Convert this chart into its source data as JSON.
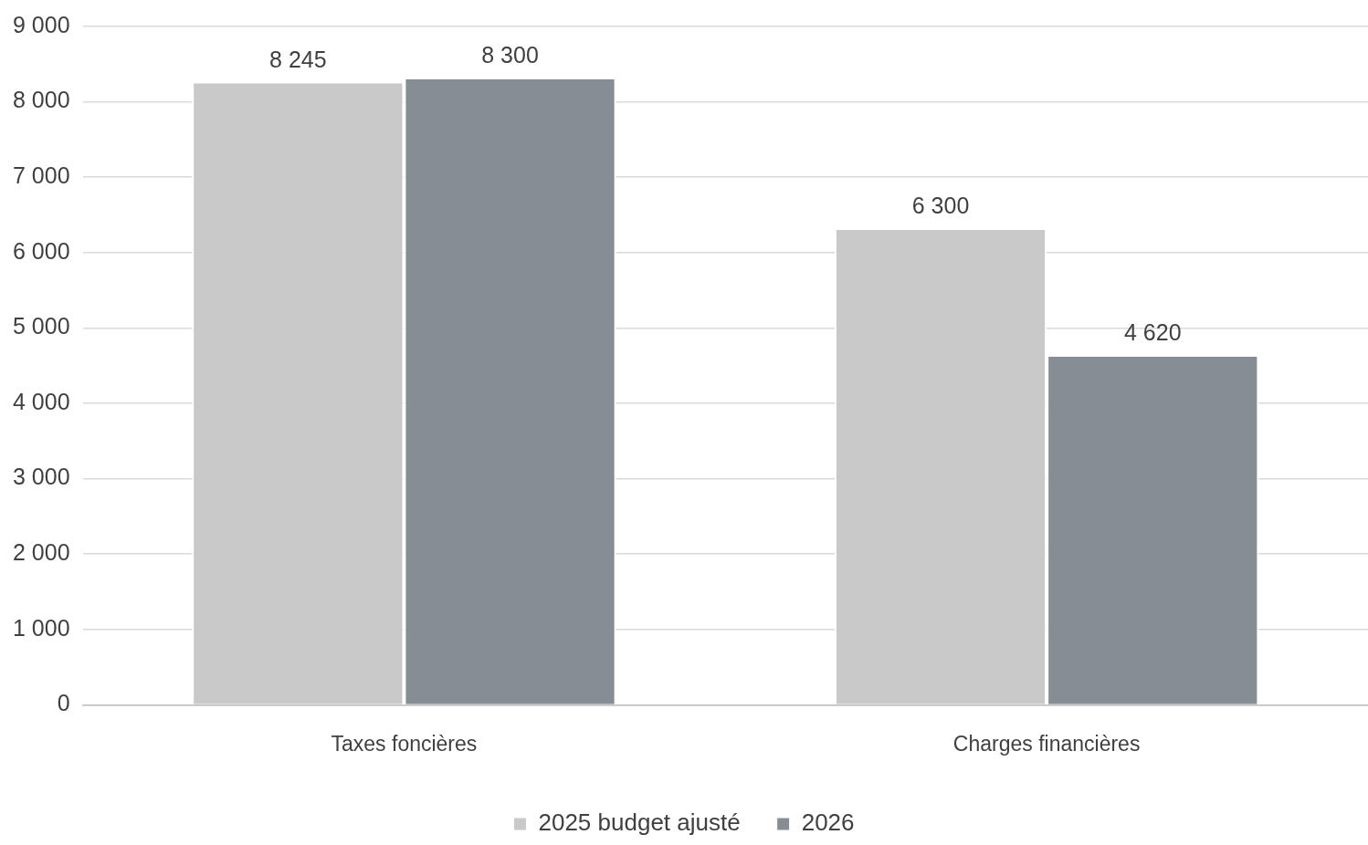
{
  "chart_data": {
    "type": "bar",
    "categories": [
      "Taxes foncières",
      "Charges financières"
    ],
    "series": [
      {
        "name": "2025 budget ajusté",
        "color": "#c9c9c9",
        "values": [
          8245,
          6300
        ],
        "value_labels": [
          "8 245",
          "6 300"
        ]
      },
      {
        "name": "2026",
        "color": "#878d94",
        "values": [
          8300,
          4620
        ],
        "value_labels": [
          "8 300",
          "4 620"
        ]
      }
    ],
    "ylim": [
      0,
      9000
    ],
    "yticks": [
      {
        "value": 0,
        "label": "0"
      },
      {
        "value": 1000,
        "label": "1 000"
      },
      {
        "value": 2000,
        "label": "2 000"
      },
      {
        "value": 3000,
        "label": "3 000"
      },
      {
        "value": 4000,
        "label": "4 000"
      },
      {
        "value": 5000,
        "label": "5 000"
      },
      {
        "value": 6000,
        "label": "6 000"
      },
      {
        "value": 7000,
        "label": "7 000"
      },
      {
        "value": 8000,
        "label": "8 000"
      },
      {
        "value": 9000,
        "label": "9 000"
      }
    ],
    "grid": "y",
    "legend": "bottom"
  }
}
